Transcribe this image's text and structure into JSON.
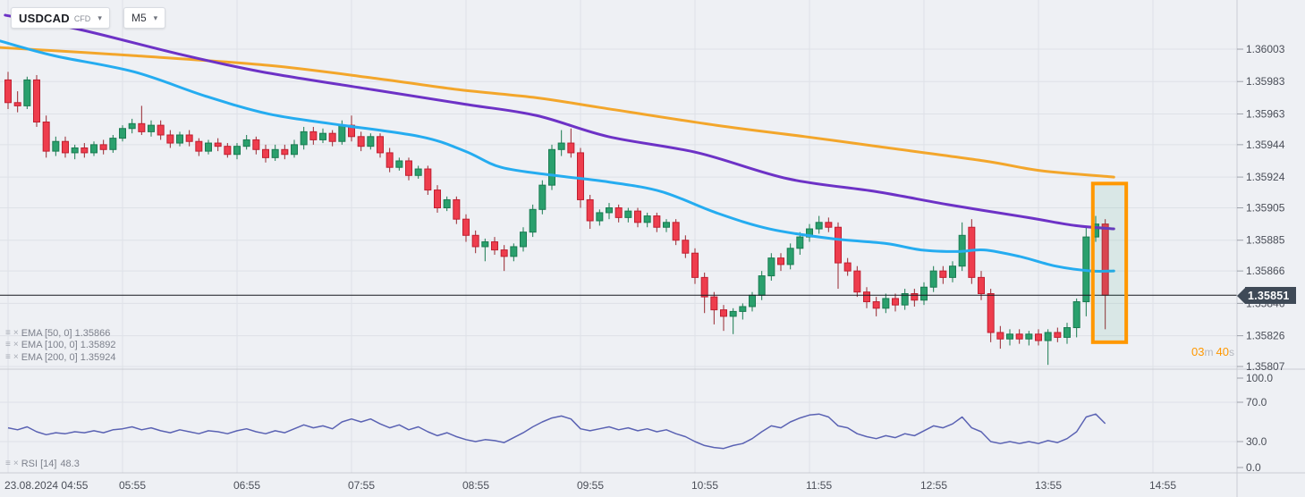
{
  "toolbar": {
    "symbol": "USDCAD",
    "symbol_type": "CFD",
    "timeframe": "M5"
  },
  "icons": {
    "chevron_down": "▾",
    "settings": "≡",
    "close": "×"
  },
  "legend": {
    "emas": [
      {
        "text": "EMA [50, 0] 1.35866"
      },
      {
        "text": "EMA [100, 0] 1.35892"
      },
      {
        "text": "EMA [200, 0] 1.35924"
      }
    ],
    "rsi": {
      "text": "RSI [14]",
      "value": "48.3"
    }
  },
  "countdown": {
    "minutes": "03",
    "min_unit": "m",
    "seconds": "40",
    "sec_unit": "s"
  },
  "price_tag": {
    "value": "1.35851"
  },
  "colors": {
    "bg": "#eef0f4",
    "grid": "#dee1e7",
    "separator": "#c9ccd3",
    "axis_text": "#4a4e58",
    "tick_dash": "#9da1aa",
    "candle_up": "#2aa06d",
    "candle_up_border": "#1a7b51",
    "candle_up_wick": "#1a7b51",
    "candle_down": "#ee3d4d",
    "candle_down_border": "#c11f31",
    "candle_down_wick": "#97272f",
    "price_line": "#16191f",
    "tag_bg": "#3f4a57",
    "tag_text": "#ffffff",
    "box_border": "#ff9800",
    "box_fill": "rgba(43,160,110,0.10)",
    "countdown_accent": "#ff9800",
    "countdown_muted": "#b4b7bf",
    "legend_text": "#7d818c",
    "icon_gray": "#a6aab4"
  },
  "chart_data": {
    "type": "candlestick",
    "title": "USDCAD CFD M5 candlestick chart with EMA(50/100/200) overlays and RSI(14) subpanel",
    "date": "23.08.2024",
    "interval_minutes": 5,
    "start_time": "04:55",
    "legend_position": "bottom-left overlay",
    "grid": true,
    "price_axis_ticks": [
      {
        "label": "1.36003",
        "value": 1.36003
      },
      {
        "label": "1.35983",
        "value": 1.35983
      },
      {
        "label": "1.35963",
        "value": 1.35963
      },
      {
        "label": "1.35944",
        "value": 1.35944
      },
      {
        "label": "1.35924",
        "value": 1.35924
      },
      {
        "label": "1.35905",
        "value": 1.35905
      },
      {
        "label": "1.35885",
        "value": 1.35885
      },
      {
        "label": "1.35866",
        "value": 1.35866
      },
      {
        "label": "1.35846",
        "value": 1.35846
      },
      {
        "label": "1.35826",
        "value": 1.35826
      },
      {
        "label": "1.35807",
        "value": 1.35807
      }
    ],
    "time_axis_labels": [
      {
        "label": "23.08.2024  04:55",
        "candle_index": 0
      },
      {
        "label": "05:55",
        "candle_index": 12
      },
      {
        "label": "06:55",
        "candle_index": 24
      },
      {
        "label": "07:55",
        "candle_index": 36
      },
      {
        "label": "08:55",
        "candle_index": 48
      },
      {
        "label": "09:55",
        "candle_index": 60
      },
      {
        "label": "10:55",
        "candle_index": 72
      },
      {
        "label": "11:55",
        "candle_index": 84
      },
      {
        "label": "12:55",
        "candle_index": 96
      },
      {
        "label": "13:55",
        "candle_index": 108
      },
      {
        "label": "14:55",
        "candle_index": 120
      }
    ],
    "current_price": {
      "value": 1.35851,
      "label": "1.35851"
    },
    "candles": [
      [
        1.35984,
        1.35989,
        1.35966,
        1.3597
      ],
      [
        1.3597,
        1.35977,
        1.35964,
        1.35968
      ],
      [
        1.35968,
        1.35986,
        1.35966,
        1.35984
      ],
      [
        1.35984,
        1.35987,
        1.35955,
        1.35958
      ],
      [
        1.35958,
        1.35962,
        1.35936,
        1.3594
      ],
      [
        1.3594,
        1.35949,
        1.35937,
        1.35946
      ],
      [
        1.35946,
        1.35949,
        1.35936,
        1.35939
      ],
      [
        1.35939,
        1.35944,
        1.35935,
        1.35942
      ],
      [
        1.35942,
        1.35945,
        1.35936,
        1.35939
      ],
      [
        1.35939,
        1.35946,
        1.35937,
        1.35944
      ],
      [
        1.35944,
        1.35947,
        1.35938,
        1.35941
      ],
      [
        1.35941,
        1.3595,
        1.35939,
        1.35948
      ],
      [
        1.35948,
        1.35956,
        1.35946,
        1.35954
      ],
      [
        1.35954,
        1.3596,
        1.35951,
        1.35957
      ],
      [
        1.35957,
        1.35968,
        1.3595,
        1.35952
      ],
      [
        1.35952,
        1.35959,
        1.35949,
        1.35956
      ],
      [
        1.35956,
        1.35959,
        1.35947,
        1.3595
      ],
      [
        1.3595,
        1.35953,
        1.35942,
        1.35945
      ],
      [
        1.35945,
        1.35952,
        1.35943,
        1.3595
      ],
      [
        1.3595,
        1.35953,
        1.35943,
        1.35946
      ],
      [
        1.35946,
        1.35948,
        1.35937,
        1.3594
      ],
      [
        1.3594,
        1.35947,
        1.35938,
        1.35945
      ],
      [
        1.35945,
        1.35948,
        1.3594,
        1.35943
      ],
      [
        1.35943,
        1.35945,
        1.35936,
        1.35938
      ],
      [
        1.35938,
        1.35945,
        1.35935,
        1.35943
      ],
      [
        1.35943,
        1.3595,
        1.35941,
        1.35947
      ],
      [
        1.35947,
        1.35949,
        1.35938,
        1.35941
      ],
      [
        1.35941,
        1.35944,
        1.35933,
        1.35936
      ],
      [
        1.35936,
        1.35944,
        1.35934,
        1.35941
      ],
      [
        1.35941,
        1.35944,
        1.35935,
        1.35938
      ],
      [
        1.35938,
        1.35947,
        1.35936,
        1.35944
      ],
      [
        1.35944,
        1.35955,
        1.35941,
        1.35952
      ],
      [
        1.35952,
        1.35955,
        1.35944,
        1.35947
      ],
      [
        1.35947,
        1.35954,
        1.35945,
        1.35951
      ],
      [
        1.35951,
        1.35953,
        1.35943,
        1.35946
      ],
      [
        1.35946,
        1.35959,
        1.35944,
        1.35956
      ],
      [
        1.35956,
        1.35962,
        1.35946,
        1.35949
      ],
      [
        1.35949,
        1.35952,
        1.3594,
        1.35943
      ],
      [
        1.35943,
        1.35951,
        1.35941,
        1.35949
      ],
      [
        1.35949,
        1.35951,
        1.35936,
        1.35939
      ],
      [
        1.35939,
        1.35942,
        1.35927,
        1.3593
      ],
      [
        1.3593,
        1.35936,
        1.35928,
        1.35934
      ],
      [
        1.35934,
        1.35936,
        1.35922,
        1.35925
      ],
      [
        1.35925,
        1.35931,
        1.35923,
        1.35929
      ],
      [
        1.35929,
        1.35931,
        1.35913,
        1.35916
      ],
      [
        1.35916,
        1.35919,
        1.35902,
        1.35905
      ],
      [
        1.35905,
        1.35912,
        1.35903,
        1.3591
      ],
      [
        1.3591,
        1.35912,
        1.35895,
        1.35898
      ],
      [
        1.35898,
        1.35901,
        1.35884,
        1.35888
      ],
      [
        1.35888,
        1.35891,
        1.35877,
        1.35881
      ],
      [
        1.35881,
        1.35886,
        1.35872,
        1.35884
      ],
      [
        1.35884,
        1.35887,
        1.35876,
        1.35879
      ],
      [
        1.35879,
        1.35882,
        1.35866,
        1.35875
      ],
      [
        1.35875,
        1.35883,
        1.35872,
        1.35881
      ],
      [
        1.35881,
        1.35893,
        1.35878,
        1.3589
      ],
      [
        1.3589,
        1.35907,
        1.35887,
        1.35904
      ],
      [
        1.35904,
        1.35922,
        1.35901,
        1.35919
      ],
      [
        1.35919,
        1.35944,
        1.35916,
        1.35941
      ],
      [
        1.35941,
        1.35953,
        1.35937,
        1.35945
      ],
      [
        1.35945,
        1.35954,
        1.35936,
        1.35939
      ],
      [
        1.35939,
        1.35942,
        1.35905,
        1.3591
      ],
      [
        1.3591,
        1.35913,
        1.35892,
        1.35897
      ],
      [
        1.35897,
        1.35904,
        1.35894,
        1.35902
      ],
      [
        1.35902,
        1.35908,
        1.35898,
        1.35905
      ],
      [
        1.35905,
        1.35907,
        1.35896,
        1.35899
      ],
      [
        1.35899,
        1.35905,
        1.35896,
        1.35903
      ],
      [
        1.35903,
        1.35905,
        1.35893,
        1.35896
      ],
      [
        1.35896,
        1.35902,
        1.35893,
        1.359
      ],
      [
        1.359,
        1.35902,
        1.3589,
        1.35893
      ],
      [
        1.35893,
        1.35898,
        1.3589,
        1.35896
      ],
      [
        1.35896,
        1.35898,
        1.35882,
        1.35885
      ],
      [
        1.35885,
        1.35888,
        1.35874,
        1.35877
      ],
      [
        1.35877,
        1.3588,
        1.35858,
        1.35862
      ],
      [
        1.35862,
        1.35865,
        1.3584,
        1.3585
      ],
      [
        1.3585,
        1.35853,
        1.35833,
        1.35842
      ],
      [
        1.35842,
        1.35845,
        1.35829,
        1.35838
      ],
      [
        1.35838,
        1.35843,
        1.35827,
        1.35841
      ],
      [
        1.35841,
        1.35846,
        1.35836,
        1.35844
      ],
      [
        1.35844,
        1.35853,
        1.35841,
        1.35851
      ],
      [
        1.35851,
        1.35866,
        1.35848,
        1.35863
      ],
      [
        1.35863,
        1.35877,
        1.3586,
        1.35874
      ],
      [
        1.35874,
        1.35877,
        1.35866,
        1.3587
      ],
      [
        1.3587,
        1.35883,
        1.35867,
        1.3588
      ],
      [
        1.3588,
        1.3589,
        1.35876,
        1.35887
      ],
      [
        1.35887,
        1.35895,
        1.35884,
        1.35892
      ],
      [
        1.35892,
        1.359,
        1.35889,
        1.35896
      ],
      [
        1.35896,
        1.35899,
        1.3589,
        1.35893
      ],
      [
        1.35893,
        1.35896,
        1.35855,
        1.35871
      ],
      [
        1.35871,
        1.35874,
        1.35863,
        1.35866
      ],
      [
        1.35866,
        1.35869,
        1.3585,
        1.35853
      ],
      [
        1.35853,
        1.35856,
        1.35843,
        1.35847
      ],
      [
        1.35847,
        1.3585,
        1.35838,
        1.35843
      ],
      [
        1.35843,
        1.35852,
        1.3584,
        1.35849
      ],
      [
        1.35849,
        1.35852,
        1.35841,
        1.35845
      ],
      [
        1.35845,
        1.35855,
        1.35842,
        1.35852
      ],
      [
        1.35852,
        1.35855,
        1.35844,
        1.35848
      ],
      [
        1.35848,
        1.35859,
        1.35845,
        1.35856
      ],
      [
        1.35856,
        1.35869,
        1.35853,
        1.35866
      ],
      [
        1.35866,
        1.35869,
        1.35858,
        1.35862
      ],
      [
        1.35862,
        1.35872,
        1.35859,
        1.35869
      ],
      [
        1.35869,
        1.35896,
        1.35866,
        1.35888
      ],
      [
        1.35893,
        1.35898,
        1.35858,
        1.35862
      ],
      [
        1.35862,
        1.35866,
        1.35848,
        1.35852
      ],
      [
        1.35852,
        1.35855,
        1.35822,
        1.35828
      ],
      [
        1.35828,
        1.35832,
        1.35818,
        1.35824
      ],
      [
        1.35824,
        1.3583,
        1.3582,
        1.35827
      ],
      [
        1.35827,
        1.3583,
        1.35821,
        1.35824
      ],
      [
        1.35824,
        1.35829,
        1.3582,
        1.35827
      ],
      [
        1.35827,
        1.3583,
        1.3582,
        1.35823
      ],
      [
        1.35823,
        1.3583,
        1.35808,
        1.35828
      ],
      [
        1.35828,
        1.35831,
        1.35822,
        1.35825
      ],
      [
        1.35825,
        1.35834,
        1.35821,
        1.35831
      ],
      [
        1.35831,
        1.35849,
        1.35825,
        1.35847
      ],
      [
        1.35847,
        1.35893,
        1.35838,
        1.35887
      ],
      [
        1.35887,
        1.359,
        1.35884,
        1.35895
      ],
      [
        1.35895,
        1.35898,
        1.3583,
        1.35851
      ]
    ],
    "emas": [
      {
        "name": "EMA 50",
        "color": "#25acf0",
        "current": 1.35866,
        "points": [
          [
            -0.8,
            1.36008
          ],
          [
            4.8,
            1.35999
          ],
          [
            13.2,
            1.35989
          ],
          [
            20.7,
            1.35974
          ],
          [
            27.3,
            1.35963
          ],
          [
            33.8,
            1.35957
          ],
          [
            43.2,
            1.35949
          ],
          [
            47.9,
            1.3594
          ],
          [
            51.7,
            1.3593
          ],
          [
            57.3,
            1.35925
          ],
          [
            62.9,
            1.35921
          ],
          [
            68.5,
            1.35915
          ],
          [
            74.2,
            1.35902
          ],
          [
            79.8,
            1.35892
          ],
          [
            86.3,
            1.35886
          ],
          [
            92.0,
            1.35883
          ],
          [
            95.7,
            1.35879
          ],
          [
            99.5,
            1.35878
          ],
          [
            102.3,
            1.35879
          ],
          [
            106.0,
            1.35875
          ],
          [
            109.8,
            1.35869
          ],
          [
            113.5,
            1.35866
          ],
          [
            115.9,
            1.35866
          ]
        ]
      },
      {
        "name": "EMA 100",
        "color": "#6d32c6",
        "current": 1.35892,
        "points": [
          [
            -0.3,
            1.36024
          ],
          [
            7.6,
            1.36015
          ],
          [
            17.9,
            1.36
          ],
          [
            26.6,
            1.35989
          ],
          [
            38.2,
            1.35978
          ],
          [
            47.9,
            1.35969
          ],
          [
            55.4,
            1.35962
          ],
          [
            62.9,
            1.35949
          ],
          [
            72.3,
            1.35939
          ],
          [
            81.7,
            1.35923
          ],
          [
            91.0,
            1.35915
          ],
          [
            98.5,
            1.35907
          ],
          [
            106.9,
            1.35899
          ],
          [
            111.9,
            1.35894
          ],
          [
            115.9,
            1.35892
          ]
        ]
      },
      {
        "name": "EMA 200",
        "color": "#f3a62b",
        "current": 1.35924,
        "points": [
          [
            -0.8,
            1.36004
          ],
          [
            13.2,
            1.35999
          ],
          [
            27.3,
            1.35993
          ],
          [
            38.5,
            1.35985
          ],
          [
            47.2,
            1.35978
          ],
          [
            55.4,
            1.35973
          ],
          [
            62.0,
            1.35967
          ],
          [
            74.2,
            1.35956
          ],
          [
            83.5,
            1.35949
          ],
          [
            91.0,
            1.35943
          ],
          [
            102.3,
            1.35934
          ],
          [
            108.2,
            1.35928
          ],
          [
            115.9,
            1.35924
          ]
        ]
      }
    ],
    "rsi": {
      "name": "RSI 14",
      "color": "#5a62b3",
      "current": 48.3,
      "axis_ticks": [
        {
          "label": "100.0",
          "value": 100
        },
        {
          "label": "70.0",
          "value": 70
        },
        {
          "label": "30.0",
          "value": 30
        },
        {
          "label": "0.0",
          "value": 0
        }
      ],
      "gridline_values": [
        70,
        30
      ],
      "values": [
        44,
        42,
        45,
        40,
        37,
        39,
        38,
        40,
        39,
        41,
        39,
        42,
        43,
        45,
        42,
        44,
        41,
        39,
        42,
        40,
        38,
        41,
        40,
        38,
        41,
        43,
        40,
        38,
        41,
        39,
        43,
        47,
        44,
        46,
        43,
        50,
        53,
        50,
        53,
        48,
        44,
        47,
        42,
        45,
        40,
        36,
        39,
        35,
        32,
        30,
        32,
        31,
        29,
        34,
        39,
        45,
        50,
        54,
        56,
        53,
        43,
        41,
        43,
        45,
        42,
        44,
        41,
        43,
        40,
        42,
        38,
        35,
        30,
        26,
        24,
        23,
        26,
        28,
        33,
        40,
        46,
        44,
        50,
        54,
        57,
        58,
        55,
        46,
        44,
        38,
        35,
        33,
        36,
        34,
        38,
        36,
        41,
        46,
        44,
        48,
        55,
        44,
        40,
        30,
        28,
        30,
        28,
        30,
        28,
        31,
        29,
        33,
        40,
        55,
        58,
        48.3
      ]
    },
    "highlight_box": {
      "from_index": 113.7,
      "to_index": 117.2,
      "price_top": 1.3592,
      "price_bottom": 1.35822
    }
  }
}
